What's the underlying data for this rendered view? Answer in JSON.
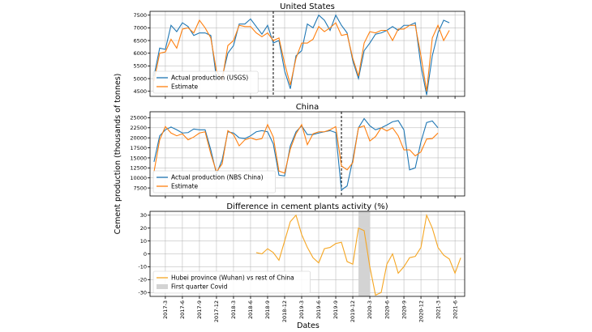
{
  "figure": {
    "ylabel": "Cement production (thousands of tonnes)",
    "xlabel": "Dates",
    "xticks": [
      "2017-3",
      "2017-6",
      "2017-9",
      "2017-12",
      "2018-3",
      "2018-6",
      "2018-9",
      "2018-12",
      "2019-3",
      "2019-6",
      "2019-9",
      "2019-12",
      "2020-3",
      "2020-6",
      "2020-9",
      "2020-12",
      "2021-3",
      "2021-6"
    ]
  },
  "chart_data": [
    {
      "type": "line",
      "title": "United States",
      "x_start": "2017-1",
      "ylim": [
        4300,
        7650
      ],
      "yticks": [
        4500,
        5000,
        5500,
        6000,
        6500,
        7000,
        7500
      ],
      "grid": true,
      "legend_placement": "lower-left",
      "vline": "2018-10",
      "series": [
        {
          "name": "Actual production (USGS)",
          "color": "#1f77b4",
          "values": [
            5100,
            6200,
            6150,
            7100,
            6850,
            7200,
            7050,
            6700,
            6800,
            6800,
            6700,
            5000,
            5050,
            6000,
            6300,
            7150,
            7150,
            7350,
            7050,
            6750,
            7100,
            6400,
            6500,
            5300,
            4600,
            5900,
            6100,
            7150,
            7000,
            7500,
            7300,
            6900,
            7500,
            7100,
            6800,
            5700,
            5000,
            6100,
            6400,
            6750,
            6800,
            6900,
            7050,
            6900,
            7100,
            7100,
            7200,
            5500,
            4350,
            5900,
            6800,
            7300,
            7200
          ],
          "comment": "monthly"
        },
        {
          "name": "Estimate",
          "color": "#ff7f0e",
          "values": [
            4900,
            6000,
            6050,
            6550,
            6200,
            6950,
            7000,
            6800,
            7300,
            7000,
            6600,
            5300,
            4950,
            6300,
            6500,
            7100,
            7050,
            7050,
            6800,
            6650,
            6800,
            6500,
            6600,
            5600,
            4750,
            5800,
            6400,
            6400,
            6550,
            7050,
            6850,
            7000,
            7200,
            6700,
            6750,
            5800,
            5100,
            6400,
            6850,
            6800,
            6900,
            6900,
            6500,
            6950,
            6950,
            7100,
            7100,
            5900,
            4500,
            6600,
            7100,
            6500,
            6900
          ]
        }
      ]
    },
    {
      "type": "line",
      "title": "China",
      "x_start": "2017-1",
      "ylim": [
        5500,
        26500
      ],
      "yticks": [
        7500,
        10000,
        12500,
        15000,
        17500,
        20000,
        22500,
        25000
      ],
      "grid": true,
      "legend_placement": "lower-left",
      "vline": "2019-10",
      "series": [
        {
          "name": "Actual production (NBS China)",
          "color": "#1f77b4",
          "values": [
            14000,
            20500,
            22000,
            22700,
            22000,
            21200,
            21300,
            22200,
            22000,
            22000,
            17000,
            11000,
            14500,
            21500,
            21200,
            20000,
            19800,
            20500,
            21500,
            21800,
            21500,
            18500,
            10700,
            10500,
            18000,
            21500,
            23000,
            20800,
            20800,
            21200,
            21500,
            21800,
            21300,
            7000,
            8000,
            14500,
            22500,
            24800,
            23000,
            22000,
            22500,
            23200,
            24000,
            24300,
            22000,
            12000,
            12500,
            19000,
            23800,
            24200,
            22500
          ],
          "comment": "monthly"
        },
        {
          "name": "Estimate",
          "color": "#ff7f0e",
          "values": [
            11500,
            19500,
            22800,
            21200,
            20500,
            21000,
            19500,
            20200,
            21200,
            21500,
            16000,
            11500,
            13500,
            21800,
            20800,
            18000,
            19500,
            20000,
            19500,
            19800,
            23300,
            20200,
            11700,
            11200,
            17200,
            21000,
            23300,
            18300,
            21000,
            21500,
            21500,
            22000,
            22800,
            13000,
            12000,
            13800,
            22500,
            23000,
            19200,
            20300,
            22500,
            21700,
            22500,
            20500,
            17000,
            17000,
            15500,
            16500,
            19700,
            19800,
            21200
          ]
        }
      ]
    },
    {
      "type": "line",
      "title": "Difference in cement plants activity (%)",
      "x_start": "2018-7",
      "ylim": [
        -33,
        33
      ],
      "yticks": [
        -30,
        -20,
        -10,
        0,
        10,
        20,
        30
      ],
      "grid": true,
      "legend_placement": "lower-left",
      "shaded_region": {
        "label": "First quarter Covid",
        "from": "2020-1",
        "to": "2020-3"
      },
      "series": [
        {
          "name": "Hubei province (Wuhan) vs rest of China",
          "color": "#f5a623",
          "values": [
            1,
            0,
            4,
            1,
            -5,
            10,
            25,
            30,
            15,
            5,
            -3,
            -7,
            4,
            5,
            8,
            9,
            -6,
            -8,
            20,
            18,
            -10,
            -32,
            -30,
            -8,
            0,
            -15,
            -10,
            -3,
            -2,
            5,
            30,
            20,
            5,
            -1,
            -4,
            -15,
            -3
          ]
        }
      ]
    }
  ]
}
